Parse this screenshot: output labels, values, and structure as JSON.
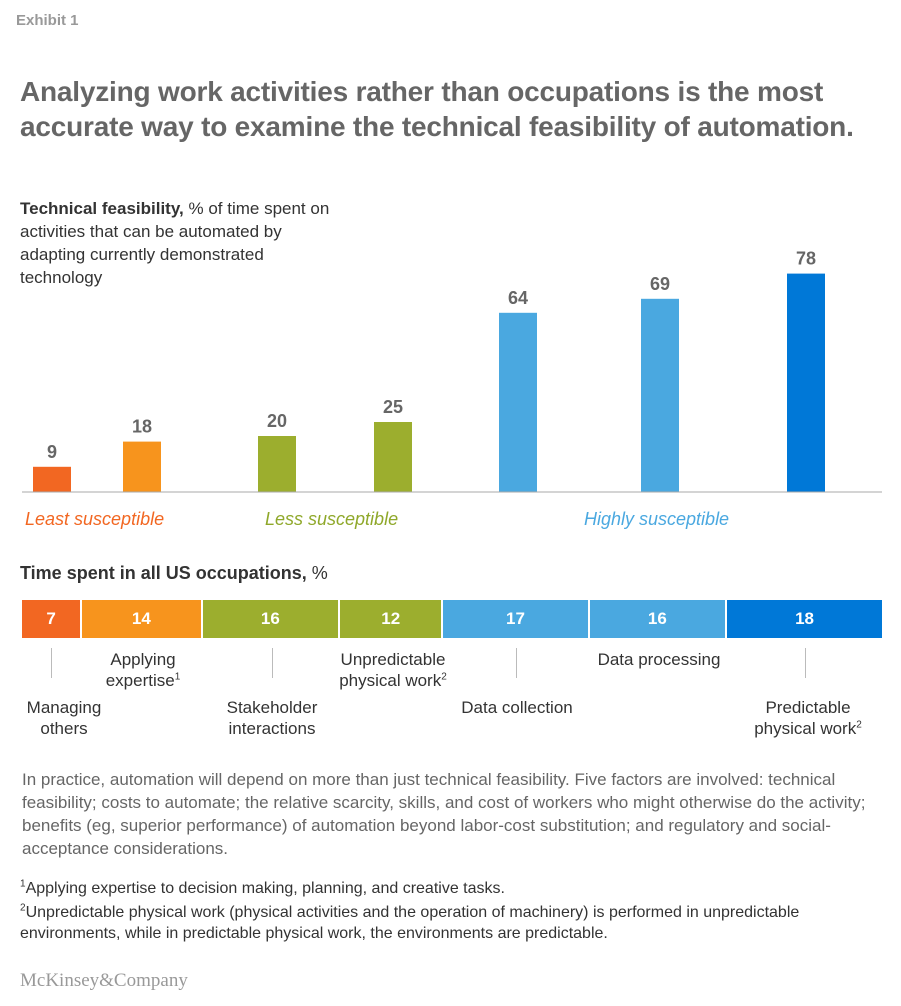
{
  "exhibit_label": "Exhibit 1",
  "title": "Analyzing work activities rather than occupations is the most accurate way to examine the technical feasibility of automation.",
  "chart_data": [
    {
      "type": "bar",
      "ylabel_bold": "Technical feasibility,",
      "ylabel_rest": " % of time spent on activities that can be automated by adapting currently demonstrated technology",
      "categories": [
        "Managing others",
        "Applying expertise",
        "Stakeholder interactions",
        "Unpredictable physical work",
        "Data collection",
        "Data processing",
        "Predictable physical work"
      ],
      "values": [
        9,
        18,
        20,
        25,
        64,
        69,
        78
      ],
      "colors": [
        "#f26722",
        "#f7941d",
        "#9cae2e",
        "#9cae2e",
        "#4aa8e0",
        "#4aa8e0",
        "#0078d7"
      ],
      "ylim": [
        0,
        100
      ],
      "groups": [
        {
          "label": "Least susceptible",
          "color": "#f26722"
        },
        {
          "label": "Less susceptible",
          "color": "#8fa82a"
        },
        {
          "label": "Highly susceptible",
          "color": "#4aa8e0"
        }
      ]
    },
    {
      "type": "bar",
      "orientation": "stacked-horizontal",
      "title_bold": "Time spent in all US occupations,",
      "title_rest": " %",
      "categories": [
        "Managing others",
        "Applying expertise",
        "Stakeholder interactions",
        "Unpredictable physical work",
        "Data collection",
        "Data processing",
        "Predictable physical work"
      ],
      "values": [
        7,
        14,
        16,
        12,
        17,
        16,
        18
      ],
      "colors": [
        "#f26722",
        "#f7941d",
        "#9cae2e",
        "#9cae2e",
        "#4aa8e0",
        "#4aa8e0",
        "#0078d7"
      ]
    }
  ],
  "activity_labels": {
    "managing": "Managing others",
    "applying": "Applying expertise",
    "stakeholder": "Stakeholder interactions",
    "unpredictable": "Unpredictable physical work",
    "data_collection": "Data collection",
    "data_processing": "Data processing",
    "predictable": "Predictable physical work"
  },
  "note": "In practice, automation will depend on more than just technical feasibility. Five factors are involved: technical feasibility; costs to automate; the relative scarcity, skills, and cost of workers who might otherwise do the activity; benefits (eg, superior performance) of automation beyond labor-cost substitution; and regulatory and social-acceptance considerations.",
  "footnotes": [
    {
      "mark": "1",
      "text": "Applying expertise to decision making, planning, and creative tasks."
    },
    {
      "mark": "2",
      "text": "Unpredictable physical work (physical activities and the operation of machinery) is performed in unpredictable environments, while in predictable physical work, the environments are predictable."
    }
  ],
  "logo": "McKinsey&Company"
}
